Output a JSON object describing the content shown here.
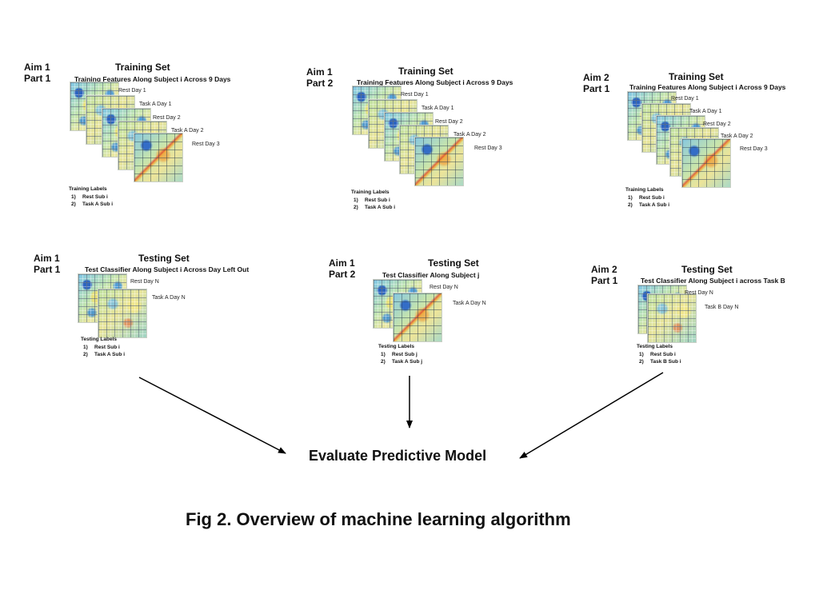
{
  "colors": {
    "text": "#111111",
    "arrow": "#000000"
  },
  "training": [
    {
      "aim": "Aim 1",
      "part": "Part 1",
      "title": "Training Set",
      "subtitle": "Training Features Along Subject i Across 9 Days",
      "matrices": [
        "Rest Day 1",
        "Task A Day 1",
        "Rest Day 2",
        "Task A Day 2",
        "Rest Day 3"
      ],
      "labels_title": "Training Labels",
      "labels": [
        "Rest Sub i",
        "Task A Sub i"
      ]
    },
    {
      "aim": "Aim 1",
      "part": "Part 2",
      "title": "Training Set",
      "subtitle": "Training Features Along Subject i Across 9 Days",
      "matrices": [
        "Rest Day 1",
        "Task A Day 1",
        "Rest Day 2",
        "Task A Day 2",
        "Rest Day 3"
      ],
      "labels_title": "Training Labels",
      "labels": [
        "Rest Sub i",
        "Task A Sub i"
      ]
    },
    {
      "aim": "Aim 2",
      "part": "Part 1",
      "title": "Training Set",
      "subtitle": "Training Features Along Subject i Across 9 Days",
      "matrices": [
        "Rest Day 1",
        "Task A Day 1",
        "Rest Day 2",
        "Task A Day 2",
        "Rest Day 3"
      ],
      "labels_title": "Training Labels",
      "labels": [
        "Rest Sub i",
        "Task A Sub i"
      ]
    }
  ],
  "testing": [
    {
      "aim": "Aim 1",
      "part": "Part 1",
      "title": "Testing Set",
      "subtitle": "Test Classifier Along Subject i Across Day Left Out",
      "matrices": [
        "Rest Day N",
        "Task A Day N"
      ],
      "labels_title": "Testing Labels",
      "labels": [
        "Rest Sub i",
        "Task A Sub i"
      ]
    },
    {
      "aim": "Aim 1",
      "part": "Part 2",
      "title": "Testing Set",
      "subtitle": "Test Classifier Along Subject j",
      "matrices": [
        "Rest Day N",
        "Task A Day N"
      ],
      "labels_title": "Testing Labels",
      "labels": [
        "Rest Sub j",
        "Task A Sub j"
      ]
    },
    {
      "aim": "Aim 2",
      "part": "Part 1",
      "title": "Testing Set",
      "subtitle": "Test Classifier Along Subject i across Task B",
      "matrices": [
        "Rest Day N",
        "Task B Day N"
      ],
      "labels_title": "Testing Labels",
      "labels": [
        "Rest Sub i",
        "Task B Sub i"
      ]
    }
  ],
  "evaluate_label": "Evaluate Predictive Model",
  "caption": "Fig 2. Overview of machine learning algorithm"
}
